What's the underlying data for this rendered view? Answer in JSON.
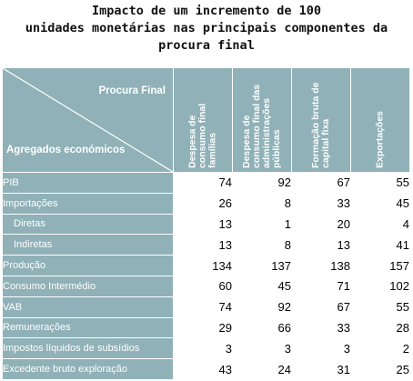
{
  "title": {
    "line1": "Impacto de um incremento de 100",
    "line2": "unidades monetárias nas principais componentes da",
    "line3": "procura final"
  },
  "table": {
    "corner_top": "Procura Final",
    "corner_bottom": "Agregados económicos",
    "columns": [
      "Despesa de consumo final famílias",
      "Despesa de consumo final das administrações públicas",
      "Formação bruta de capital fixa",
      "Exportações"
    ],
    "rows": [
      {
        "label": "PIB",
        "values": [
          "74",
          "92",
          "67",
          "55"
        ]
      },
      {
        "label": "Importações",
        "values": [
          "26",
          "8",
          "33",
          "45"
        ]
      },
      {
        "label": "Diretas",
        "values": [
          "13",
          "1",
          "20",
          "4"
        ]
      },
      {
        "label": "Indiretas",
        "values": [
          "13",
          "8",
          "13",
          "41"
        ]
      },
      {
        "label": "Produção",
        "values": [
          "134",
          "137",
          "138",
          "157"
        ]
      },
      {
        "label": "Consumo Intermédio",
        "values": [
          "60",
          "45",
          "71",
          "102"
        ]
      },
      {
        "label": "VAB",
        "values": [
          "74",
          "92",
          "67",
          "55"
        ]
      },
      {
        "label": "Remunerações",
        "values": [
          "29",
          "66",
          "33",
          "28"
        ]
      },
      {
        "label": "Impostos líquidos de subsídios",
        "values": [
          "3",
          "3",
          "3",
          "2"
        ]
      },
      {
        "label": "Excedente bruto exploração",
        "values": [
          "43",
          "24",
          "31",
          "25"
        ]
      }
    ]
  },
  "colors": {
    "header_bg": "#8fb1b7",
    "header_text": "#ffffff"
  }
}
